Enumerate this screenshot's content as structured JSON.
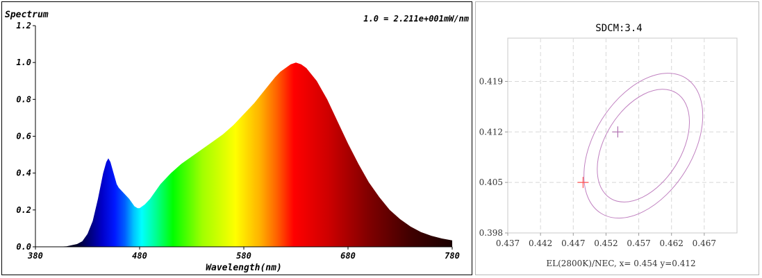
{
  "chart_data": [
    {
      "type": "area",
      "title": "Spectrum",
      "scale_note": "1.0 = 2.211e+001mW/nm",
      "xlabel": "Wavelength(nm)",
      "ylabel": "",
      "xlim": [
        380,
        780
      ],
      "ylim": [
        0,
        1.2
      ],
      "xticks": [
        "380",
        "480",
        "580",
        "680",
        "780"
      ],
      "yticks": [
        "0.0",
        "0.2",
        "0.4",
        "0.6",
        "0.8",
        "1.0",
        "1.2"
      ],
      "fill": "visible-spectrum gradient",
      "x": [
        380,
        400,
        410,
        420,
        425,
        430,
        435,
        440,
        445,
        448,
        450,
        452,
        455,
        458,
        460,
        465,
        470,
        475,
        478,
        480,
        485,
        490,
        495,
        500,
        510,
        520,
        530,
        540,
        550,
        560,
        570,
        580,
        590,
        600,
        610,
        615,
        620,
        625,
        630,
        635,
        640,
        650,
        660,
        670,
        680,
        690,
        700,
        710,
        720,
        730,
        740,
        750,
        760,
        770,
        780
      ],
      "y": [
        0.0,
        0.0,
        0.003,
        0.015,
        0.03,
        0.07,
        0.14,
        0.26,
        0.4,
        0.46,
        0.48,
        0.46,
        0.4,
        0.34,
        0.32,
        0.29,
        0.26,
        0.22,
        0.21,
        0.21,
        0.23,
        0.26,
        0.3,
        0.34,
        0.4,
        0.45,
        0.49,
        0.53,
        0.57,
        0.61,
        0.66,
        0.72,
        0.78,
        0.85,
        0.92,
        0.95,
        0.97,
        0.99,
        1.0,
        0.99,
        0.97,
        0.9,
        0.8,
        0.68,
        0.56,
        0.45,
        0.35,
        0.27,
        0.2,
        0.15,
        0.11,
        0.08,
        0.06,
        0.045,
        0.035
      ]
    },
    {
      "type": "scatter",
      "title": "SDCM:3.4",
      "xlabel": "EL(2800K)/NEC, x= 0.454 y=0.412",
      "ylabel": "",
      "xlim": [
        0.437,
        0.472
      ],
      "ylim": [
        0.398,
        0.425
      ],
      "xticks": [
        "0.437",
        "0.442",
        "0.447",
        "0.452",
        "0.457",
        "0.462",
        "0.467"
      ],
      "yticks": [
        "0.398",
        "0.405",
        "0.412",
        "0.419"
      ],
      "grid": true,
      "ellipses": [
        {
          "center": [
            0.4577,
            0.4101
          ],
          "semi_axes": [
            0.0095,
            0.0058
          ],
          "angle_deg": 58,
          "color": "#c080c0"
        },
        {
          "center": [
            0.4577,
            0.4101
          ],
          "semi_axes": [
            0.0122,
            0.0075
          ],
          "angle_deg": 58,
          "color": "#c080c0"
        }
      ],
      "points": [
        {
          "x": 0.4538,
          "y": 0.412,
          "color": "#b070b0"
        },
        {
          "x": 0.4485,
          "y": 0.405,
          "color": "#ff5050"
        }
      ]
    }
  ]
}
